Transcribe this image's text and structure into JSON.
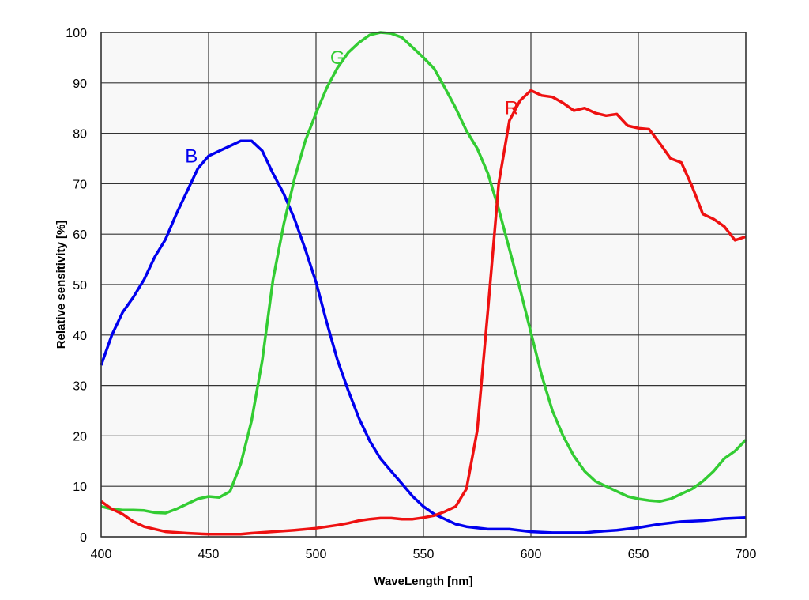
{
  "chart_data": {
    "type": "line",
    "title": "",
    "xlabel": "WaveLength [nm]",
    "ylabel": "Relative sensitivity [%]",
    "xlim": [
      400,
      700
    ],
    "ylim": [
      0,
      100
    ],
    "xticks": [
      400,
      450,
      500,
      550,
      600,
      650,
      700
    ],
    "yticks": [
      0,
      10,
      20,
      30,
      40,
      50,
      60,
      70,
      80,
      90,
      100
    ],
    "grid": true,
    "legend": "inline labels",
    "series": [
      {
        "name": "B",
        "color": "#0000ee",
        "label_at": [
          442,
          75.5
        ],
        "x": [
          400,
          405,
          410,
          415,
          420,
          425,
          430,
          435,
          440,
          445,
          450,
          455,
          460,
          465,
          470,
          475,
          480,
          485,
          490,
          495,
          500,
          505,
          510,
          515,
          520,
          525,
          530,
          535,
          540,
          545,
          550,
          555,
          560,
          565,
          570,
          580,
          590,
          600,
          610,
          620,
          625,
          630,
          640,
          650,
          660,
          670,
          680,
          690,
          700
        ],
        "y": [
          34,
          40,
          44.5,
          47.5,
          51,
          55.5,
          59,
          64,
          68.5,
          73,
          75.5,
          76.5,
          77.5,
          78.5,
          78.5,
          76.5,
          72,
          68,
          63,
          57,
          50.5,
          42.5,
          35,
          29,
          23.5,
          19,
          15.5,
          13,
          10.5,
          8,
          6,
          4.5,
          3.5,
          2.5,
          2,
          1.5,
          1.5,
          1,
          0.8,
          0.8,
          0.8,
          1,
          1.3,
          1.8,
          2.5,
          3,
          3.2,
          3.6,
          3.8
        ]
      },
      {
        "name": "G",
        "color": "#33cc33",
        "label_at": [
          510,
          95
        ],
        "x": [
          400,
          405,
          410,
          415,
          420,
          425,
          430,
          435,
          440,
          445,
          450,
          455,
          460,
          465,
          470,
          475,
          480,
          485,
          490,
          495,
          500,
          505,
          510,
          515,
          520,
          525,
          530,
          535,
          540,
          545,
          550,
          555,
          560,
          565,
          570,
          575,
          580,
          585,
          590,
          595,
          600,
          605,
          610,
          615,
          620,
          625,
          630,
          635,
          640,
          645,
          650,
          655,
          660,
          665,
          670,
          675,
          680,
          685,
          690,
          695,
          700
        ],
        "y": [
          6,
          5.5,
          5.3,
          5.3,
          5.2,
          4.8,
          4.7,
          5.5,
          6.5,
          7.5,
          8,
          7.8,
          9,
          14.5,
          23,
          35,
          51,
          62,
          71,
          78.5,
          84,
          89,
          93,
          96,
          98,
          99.5,
          100,
          99.8,
          99,
          97,
          95,
          92.8,
          89,
          85,
          80.5,
          77,
          72,
          65,
          57,
          49,
          40.5,
          32,
          25,
          20,
          16,
          13,
          11,
          10,
          9,
          8,
          7.5,
          7.2,
          7,
          7.5,
          8.5,
          9.5,
          11,
          13,
          15.5,
          17,
          19.2
        ]
      },
      {
        "name": "R",
        "color": "#ee1111",
        "label_at": [
          591,
          85
        ],
        "x": [
          400,
          405,
          410,
          415,
          420,
          425,
          430,
          440,
          450,
          460,
          465,
          470,
          480,
          490,
          500,
          510,
          515,
          520,
          525,
          530,
          535,
          540,
          545,
          550,
          555,
          560,
          565,
          570,
          575,
          580,
          583,
          585,
          590,
          595,
          600,
          605,
          610,
          615,
          620,
          625,
          630,
          635,
          640,
          645,
          650,
          655,
          660,
          665,
          670,
          675,
          680,
          685,
          690,
          695,
          700
        ],
        "y": [
          7,
          5.5,
          4.5,
          3,
          2,
          1.5,
          1,
          0.7,
          0.5,
          0.5,
          0.5,
          0.7,
          1,
          1.3,
          1.7,
          2.3,
          2.7,
          3.2,
          3.5,
          3.7,
          3.7,
          3.5,
          3.5,
          3.8,
          4.2,
          5,
          6,
          9.5,
          21,
          45,
          60,
          70,
          82.5,
          86.5,
          88.5,
          87.5,
          87.2,
          86,
          84.5,
          85,
          84,
          83.5,
          83.8,
          81.5,
          81,
          80.8,
          78,
          75,
          74.2,
          69.5,
          64,
          63,
          61.5,
          58.8,
          59.5
        ]
      }
    ]
  }
}
